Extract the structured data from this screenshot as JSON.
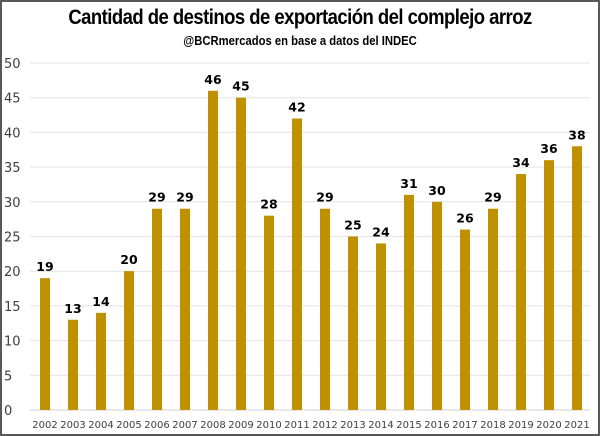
{
  "chart_data": {
    "type": "bar",
    "title": "Cantidad de destinos de exportación del complejo arroz",
    "subtitle": "@BCRmercados  en base a datos del INDEC",
    "xlabel": "",
    "ylabel": "",
    "categories": [
      "2002",
      "2003",
      "2004",
      "2005",
      "2006",
      "2007",
      "2008",
      "2009",
      "2010",
      "2011",
      "2012",
      "2013",
      "2014",
      "2015",
      "2016",
      "2017",
      "2018",
      "2019",
      "2020",
      "2021"
    ],
    "values": [
      19,
      13,
      14,
      20,
      29,
      29,
      46,
      45,
      28,
      42,
      29,
      25,
      24,
      31,
      30,
      26,
      29,
      34,
      36,
      38
    ],
    "ylim": [
      0,
      50
    ],
    "yticks": [
      0,
      5,
      10,
      15,
      20,
      25,
      30,
      35,
      40,
      45,
      50
    ],
    "grid": true,
    "legend": "none",
    "bar_color": "#BF9000",
    "data_labels": true
  }
}
